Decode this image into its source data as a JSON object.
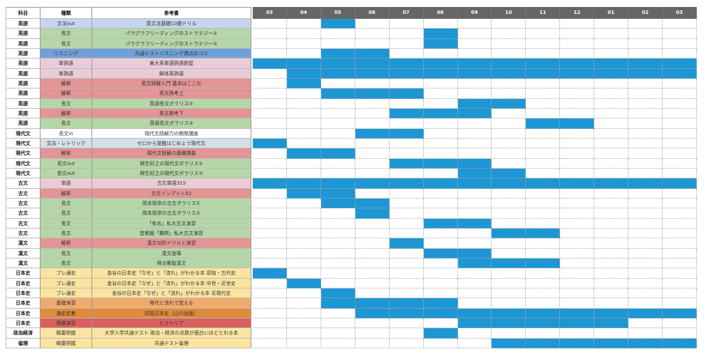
{
  "chart_data": {
    "type": "gantt",
    "headers": {
      "subject": "科目",
      "kind": "種類",
      "book": "参考書"
    },
    "categories": [
      "03",
      "04",
      "05",
      "06",
      "07",
      "08",
      "09",
      "10",
      "11",
      "12",
      "01",
      "02",
      "03"
    ],
    "bar_color": "#1e96d4",
    "header_color": "#666666",
    "rows": [
      {
        "subject": "英語",
        "kind": "文法out",
        "book": "英文法基礎10題ドリル",
        "color": "#c5d5ee",
        "span": [
          2,
          2
        ]
      },
      {
        "subject": "英語",
        "kind": "長文",
        "book": "パラグラフリーディングのストラテジー①",
        "color": "#b5d6a7",
        "span": [
          5,
          5
        ]
      },
      {
        "subject": "英語",
        "kind": "長文",
        "book": "パラグラフリーディングのストラテジー②",
        "color": "#b5d6a7",
        "span": [
          5,
          5
        ]
      },
      {
        "subject": "英語",
        "kind": "リスニング",
        "book": "共通テストリスニング満点のコツ",
        "color": "#6fa0d8",
        "span": [
          2,
          3
        ]
      },
      {
        "subject": "英語",
        "kind": "単熟語",
        "book": "東大英単語熟語鉄壁",
        "color": "#e9ccd8",
        "span": [
          0,
          12
        ]
      },
      {
        "subject": "英語",
        "kind": "単熟語",
        "book": "解体英熟語",
        "color": "#e9ccd8",
        "span": [
          1,
          12
        ]
      },
      {
        "subject": "英語",
        "kind": "解釈",
        "book": "英文読解入門 基本はここだ",
        "color": "#e39494",
        "span": [
          1,
          1
        ]
      },
      {
        "subject": "英語",
        "kind": "解釈",
        "book": "英文熟考上",
        "color": "#e39494",
        "span": [
          2,
          4
        ]
      },
      {
        "subject": "英語",
        "kind": "長文",
        "book": "英語長文ポラリス②",
        "color": "#b5d6a7",
        "span": [
          6,
          7
        ]
      },
      {
        "subject": "英語",
        "kind": "解釈",
        "book": "英文熟考下",
        "color": "#e39494",
        "span": [
          4,
          6
        ]
      },
      {
        "subject": "英語",
        "kind": "長文",
        "book": "英語長文ポラリス③",
        "color": "#b5d6a7",
        "span": [
          8,
          9
        ]
      },
      {
        "subject": "現代文",
        "kind": "長文in",
        "book": "現代文読解力の開発講座",
        "color": "#ffffff",
        "span": [
          3,
          4
        ]
      },
      {
        "subject": "現代文",
        "kind": "文法・レトリック",
        "book": "ゼロから覚醒はじめよう現代文",
        "color": "#d3e0e6",
        "span": [
          0,
          0
        ]
      },
      {
        "subject": "現代文",
        "kind": "解釈",
        "book": "現代文読解の基礎講義",
        "color": "#e39494",
        "span": [
          1,
          2
        ]
      },
      {
        "subject": "現代文",
        "kind": "長文out",
        "book": "柳生好之の現代文ポラリス①",
        "color": "#b5d6a7",
        "span": [
          4,
          6
        ]
      },
      {
        "subject": "現代文",
        "kind": "長文out",
        "book": "柳生好之の現代文ポラリス②",
        "color": "#b5d6a7",
        "span": [
          6,
          7
        ]
      },
      {
        "subject": "古文",
        "kind": "単語",
        "book": "古文単語315",
        "color": "#e9ccd8",
        "span": [
          0,
          12
        ]
      },
      {
        "subject": "古文",
        "kind": "解釈",
        "book": "古文インプット52",
        "color": "#e39494",
        "span": [
          1,
          2
        ]
      },
      {
        "subject": "古文",
        "kind": "長文",
        "book": "岡本梨奈の古文ポラリス①",
        "color": "#b5d6a7",
        "span": [
          2,
          3
        ]
      },
      {
        "subject": "古文",
        "kind": "長文",
        "book": "岡本梨奈の古文ポラリス②",
        "color": "#b5d6a7",
        "span": [
          3,
          3
        ]
      },
      {
        "subject": "古文",
        "kind": "長文",
        "book": "「有名」私大古文演習",
        "color": "#b5d6a7",
        "span": [
          5,
          6
        ]
      },
      {
        "subject": "古文",
        "kind": "長文",
        "book": "首都圏「難関」私大古文演習",
        "color": "#b5d6a7",
        "span": [
          7,
          8
        ]
      },
      {
        "subject": "漢文",
        "kind": "解釈",
        "book": "漢文句形ドリルと演習",
        "color": "#e39494",
        "span": [
          4,
          4
        ]
      },
      {
        "subject": "漢文",
        "kind": "長文",
        "book": "漢文道場",
        "color": "#b5d6a7",
        "span": [
          5,
          6
        ]
      },
      {
        "subject": "漢文",
        "kind": "長文",
        "book": "得点奪取漢文",
        "color": "#b5d6a7",
        "span": [
          6,
          8
        ]
      },
      {
        "subject": "日本史",
        "kind": "プレ通史",
        "book": "金谷の日本史「なぜ」と「流れ」がわかる本 原始・古代史",
        "color": "#fbe4a0",
        "span": [
          0,
          0
        ]
      },
      {
        "subject": "日本史",
        "kind": "プレ通史",
        "book": "金谷の日本史「なぜ」と「流れ」がわかる本 中世・近世史",
        "color": "#fbe4a0",
        "span": [
          1,
          1
        ]
      },
      {
        "subject": "日本史",
        "kind": "プレ通史",
        "book": "金谷の日本史「なぜ」と「流れ」がわかる本 近現代史",
        "color": "#fbe4a0",
        "span": [
          2,
          2
        ]
      },
      {
        "subject": "日本史",
        "kind": "基礎演習",
        "book": "時代と流れで覚える",
        "color": "#efab6e",
        "span": [
          2,
          5
        ]
      },
      {
        "subject": "日本史",
        "kind": "通史定着",
        "book": "詳説日本史（山川出版）",
        "color": "#e08a3a",
        "span": [
          3,
          12
        ]
      },
      {
        "subject": "日本史",
        "kind": "発展演習",
        "book": "ヒストリア",
        "color": "#d9605e",
        "span": [
          6,
          10
        ]
      },
      {
        "subject": "政治経済",
        "kind": "概要把握",
        "book": "大学入学共通テスト 政治・経済の点数が面白いほどとれる本",
        "color": "#fbe4a0",
        "span": [
          5,
          5
        ]
      },
      {
        "subject": "倫理",
        "kind": "概要把握",
        "book": "共通テスト倫理",
        "color": "#fbe4a0",
        "span": [
          7,
          12
        ]
      }
    ]
  }
}
